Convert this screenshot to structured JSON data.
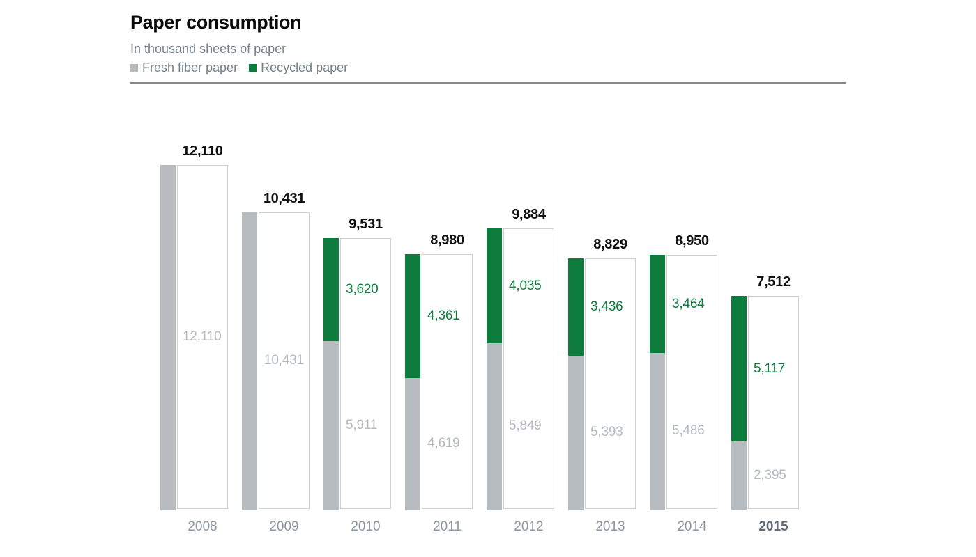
{
  "header": {
    "title": "Paper consumption",
    "subtitle": "In thousand sheets of paper"
  },
  "legend": [
    {
      "label": "Fresh fiber paper",
      "color": "#b7bcc1"
    },
    {
      "label": "Recycled paper",
      "color": "#0e7c3d"
    }
  ],
  "colors": {
    "fresh_bar": "#b7bcc1",
    "recycled_bar": "#0e7c3d",
    "fresh_value_text": "#b3b9bf",
    "recycled_value_text": "#0e7c3d",
    "total_text": "#111111",
    "year_text": "#8c96a2",
    "year_text_highlight": "#5f6b78",
    "box_border": "#cdd1d5",
    "rule": "#85898d",
    "subtitle_text": "#76808a"
  },
  "chart_data": {
    "type": "bar",
    "stacked": true,
    "title": "Paper consumption",
    "subtitle": "In thousand sheets of paper",
    "unit": "thousand sheets of paper",
    "categories": [
      "2008",
      "2009",
      "2010",
      "2011",
      "2012",
      "2013",
      "2014",
      "2015"
    ],
    "series": [
      {
        "name": "Fresh fiber paper",
        "color": "#b7bcc1",
        "values": [
          12110,
          10431,
          5911,
          4619,
          5849,
          5393,
          5486,
          2395
        ]
      },
      {
        "name": "Recycled paper",
        "color": "#0e7c3d",
        "values": [
          0,
          0,
          3620,
          4361,
          4035,
          3436,
          3464,
          5117
        ]
      }
    ],
    "totals": [
      12110,
      10431,
      9531,
      8980,
      9884,
      8829,
      8950,
      7512
    ],
    "ylim": [
      0,
      12110
    ],
    "grid": false,
    "legend_position": "top",
    "value_labels": "inside-segments",
    "total_labels": "above-bars",
    "highlighted_category": "2015"
  }
}
